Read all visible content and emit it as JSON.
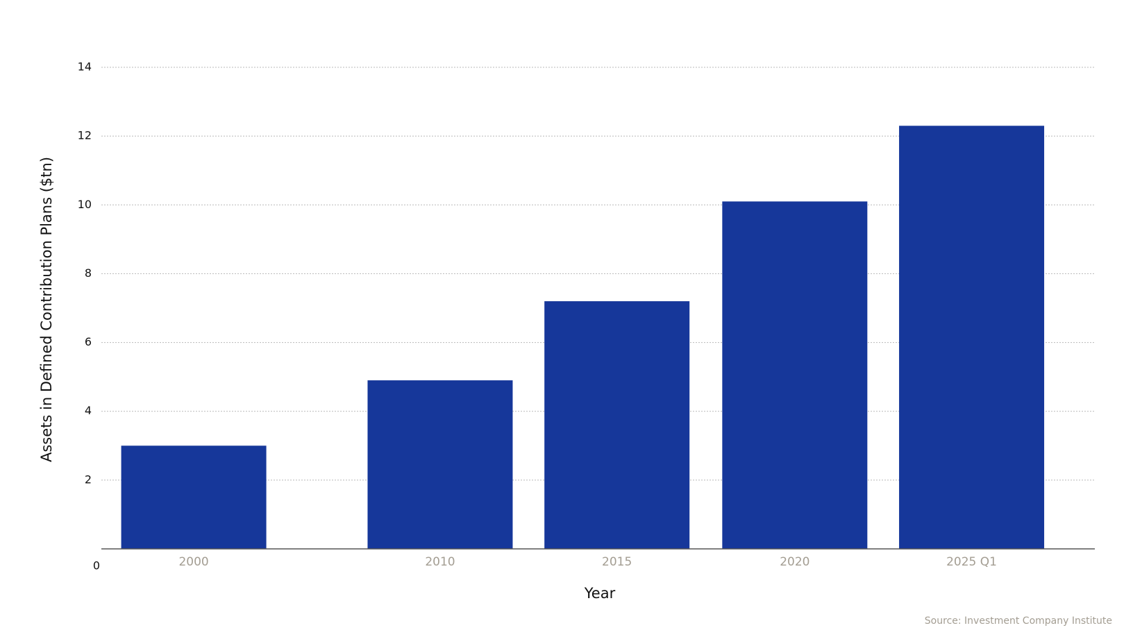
{
  "chart_data": {
    "type": "bar",
    "x_label": "Year",
    "y_label": "Assets in Defined Contribution Plans ($tn)",
    "source": "Source: Investment Company Institute",
    "categories": [
      "2000",
      "2010",
      "2015",
      "2020",
      "2025 Q1"
    ],
    "values": [
      3.0,
      4.9,
      7.2,
      10.1,
      12.3
    ],
    "color": "#16379a",
    "ylim": [
      0,
      14
    ],
    "yticks": [
      0,
      2,
      4,
      6,
      8,
      10,
      12,
      14
    ],
    "grid": true
  }
}
